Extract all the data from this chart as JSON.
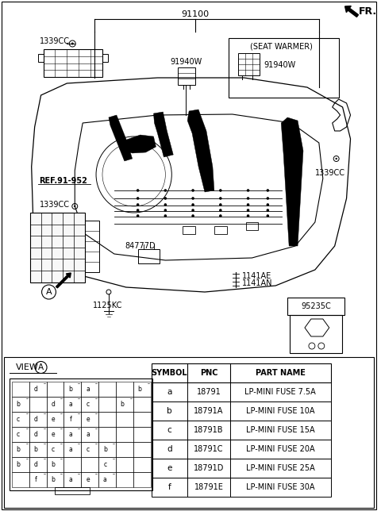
{
  "bg_color": "#ffffff",
  "part_number_top": "91100",
  "fr_label": "FR.",
  "labels": {
    "1339CC_top_left": "1339CC",
    "1339CC_right": "1339CC",
    "1339CC_mid_left": "1339CC",
    "91940W_center": "91940W",
    "seat_warmer": "(SEAT WARMER)",
    "91940W_box": "91940W",
    "ref_91_952": "REF.91-952",
    "84777D": "84777D",
    "1125KC": "1125KC",
    "1141AE": "1141AE",
    "1141AN": "1141AN",
    "95235C": "95235C"
  },
  "table_headers": [
    "SYMBOL",
    "PNC",
    "PART NAME"
  ],
  "table_rows": [
    [
      "a",
      "18791",
      "LP-MINI FUSE 7.5A"
    ],
    [
      "b",
      "18791A",
      "LP-MINI FUSE 10A"
    ],
    [
      "c",
      "18791B",
      "LP-MINI FUSE 15A"
    ],
    [
      "d",
      "18791C",
      "LP-MINI FUSE 20A"
    ],
    [
      "e",
      "18791D",
      "LP-MINI FUSE 25A"
    ],
    [
      "f",
      "18791E",
      "LP-MINI FUSE 30A"
    ]
  ],
  "fuse_grid": [
    [
      "",
      "d",
      "",
      "b",
      "a",
      "",
      "",
      "",
      "b",
      ""
    ],
    [
      "b",
      "",
      "",
      "d",
      "a",
      "c",
      "",
      "b",
      ""
    ],
    [
      "c",
      "d",
      "",
      "e",
      "f",
      "e",
      "",
      "",
      ""
    ],
    [
      "c",
      "d",
      "",
      "e",
      "a",
      "a",
      "",
      "",
      ""
    ],
    [
      "b",
      "b",
      "",
      "c",
      "a",
      "c",
      "b",
      "",
      ""
    ],
    [
      "b",
      "d",
      "",
      "b",
      "",
      "",
      "c",
      "",
      ""
    ],
    [
      "",
      "f",
      "",
      "b",
      "a",
      "e",
      "a",
      "",
      ""
    ]
  ]
}
